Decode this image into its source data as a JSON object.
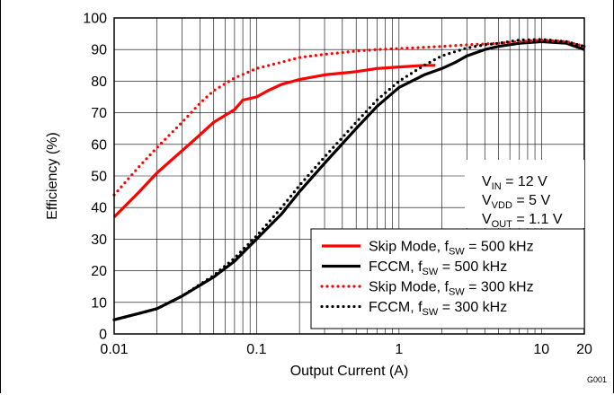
{
  "figure_id": "G001",
  "chart_data": {
    "type": "line",
    "title": "",
    "xlabel": "Output Current (A)",
    "ylabel": "Efficiency (%)",
    "xscale": "log",
    "xlim": [
      0.01,
      20
    ],
    "ylim": [
      0,
      100
    ],
    "xticks": [
      {
        "v": 0.01,
        "label": "0.01"
      },
      {
        "v": 0.1,
        "label": "0.1"
      },
      {
        "v": 1,
        "label": "1"
      },
      {
        "v": 10,
        "label": "10"
      },
      {
        "v": 20,
        "label": "20"
      }
    ],
    "yticks": [
      0,
      10,
      20,
      30,
      40,
      50,
      60,
      70,
      80,
      90,
      100
    ],
    "grid": true,
    "conditions": [
      {
        "name": "V",
        "sub": "IN",
        "value": " = 12 V"
      },
      {
        "name": "V",
        "sub": "VDD",
        "value": " = 5 V"
      },
      {
        "name": "V",
        "sub": "OUT",
        "value": " = 1.1 V"
      }
    ],
    "legend": {
      "placement": "bottom-right",
      "entries": [
        {
          "pre": "Skip Mode, f",
          "sub": "SW",
          "post": " = 500 kHz"
        },
        {
          "pre": "FCCM, f",
          "sub": "SW",
          "post": " = 500 kHz"
        },
        {
          "pre": "Skip Mode, f",
          "sub": "SW",
          "post": " = 300 kHz"
        },
        {
          "pre": "FCCM, f",
          "sub": "SW",
          "post": " = 300 kHz"
        }
      ]
    },
    "series": [
      {
        "color": "#ff0000",
        "style": "solid",
        "x": [
          0.01,
          0.015,
          0.02,
          0.03,
          0.04,
          0.05,
          0.07,
          0.08,
          0.1,
          0.12,
          0.15,
          0.2,
          0.3,
          0.5,
          0.7,
          1,
          1.5,
          1.8
        ],
        "y": [
          37,
          45,
          51,
          58,
          63,
          67,
          71,
          74,
          75,
          77,
          79,
          80.5,
          82,
          83,
          84,
          84.5,
          85,
          85
        ]
      },
      {
        "color": "#000000",
        "style": "solid",
        "x": [
          0.01,
          0.015,
          0.02,
          0.03,
          0.05,
          0.07,
          0.1,
          0.15,
          0.2,
          0.3,
          0.5,
          0.7,
          1,
          1.5,
          2,
          2.5,
          3,
          4,
          5,
          7,
          10,
          15,
          20
        ],
        "y": [
          4.5,
          6.5,
          8,
          12,
          18,
          23,
          30,
          38,
          45,
          54,
          65,
          72,
          78,
          82,
          84,
          86,
          88,
          90,
          91,
          92,
          92.5,
          92,
          90
        ]
      },
      {
        "color": "#ff0000",
        "style": "dotted",
        "x": [
          0.01,
          0.015,
          0.02,
          0.03,
          0.04,
          0.05,
          0.07,
          0.1,
          0.15,
          0.2,
          0.3,
          0.5,
          0.7,
          1,
          2,
          3,
          5,
          7,
          10,
          15,
          20
        ],
        "y": [
          44,
          53,
          59,
          67,
          73,
          77,
          81,
          84,
          86,
          87.5,
          88.5,
          89.5,
          90,
          90.3,
          91,
          91.5,
          92,
          92.5,
          93,
          92.5,
          91
        ]
      },
      {
        "color": "#000000",
        "style": "dotted",
        "x": [
          0.01,
          0.015,
          0.02,
          0.03,
          0.05,
          0.07,
          0.1,
          0.15,
          0.2,
          0.3,
          0.5,
          0.7,
          1,
          1.5,
          2,
          3,
          4,
          5,
          7,
          10,
          15,
          20
        ],
        "y": [
          4.5,
          6.5,
          8,
          12,
          18.5,
          24,
          31,
          40,
          47,
          56,
          67,
          74,
          80,
          85,
          88,
          90.5,
          91.5,
          92,
          93,
          93.2,
          92.5,
          91
        ]
      }
    ]
  }
}
